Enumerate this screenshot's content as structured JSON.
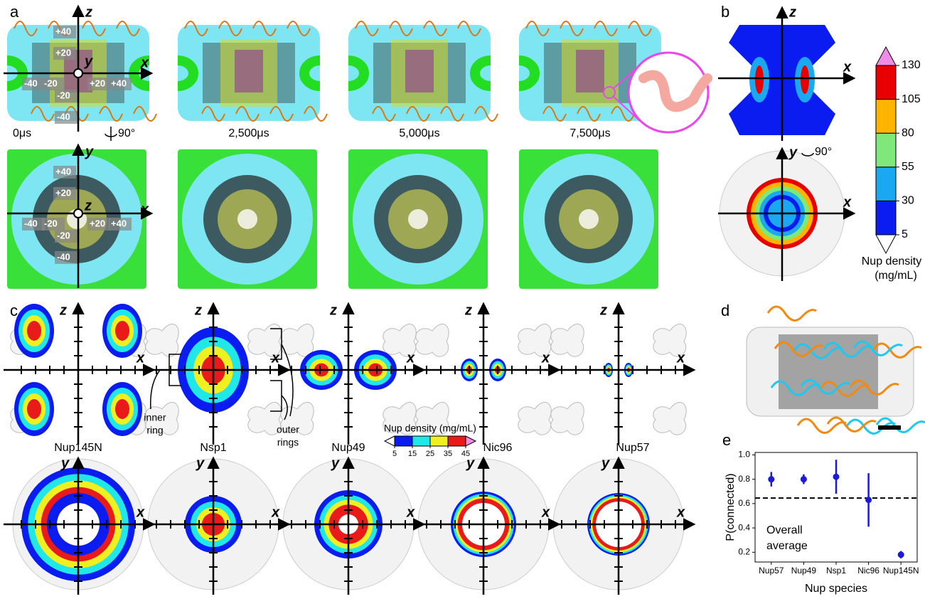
{
  "panel_labels": [
    "a",
    "b",
    "c",
    "d",
    "e"
  ],
  "panel_a": {
    "top_axes": [
      "z",
      "y",
      "x"
    ],
    "bottom_axes": [
      "y",
      "z",
      "x"
    ],
    "ticks": [
      "+40",
      "+20",
      "-40",
      "-20",
      "+20",
      "+40",
      "-20",
      "-40"
    ],
    "times": [
      "0μs",
      "2,500μs",
      "5,000μs",
      "7,500μs"
    ],
    "rotation": "90°"
  },
  "panel_b": {
    "top_axes": [
      "z",
      "x"
    ],
    "bottom_axes": [
      "y",
      "x"
    ],
    "rotation": "90°",
    "colorbar": {
      "ticks": [
        5,
        30,
        55,
        80,
        105,
        130
      ],
      "colors": [
        "#0a1cf0",
        "#1aa8f0",
        "#7ee87a",
        "#ffb400",
        "#e80000"
      ],
      "under": "#ffffff",
      "over": "#f08ce8",
      "label": [
        "Nup density",
        "(mg/mL)"
      ]
    }
  },
  "panel_c": {
    "top_axes": [
      "z",
      "x"
    ],
    "bottom_axes": [
      "y",
      "x"
    ],
    "names": [
      "Nup145N",
      "Nsp1",
      "Nup49",
      "Nic96",
      "Nup57"
    ],
    "inner_ring": [
      "inner",
      "ring"
    ],
    "outer_rings": [
      "outer",
      "rings"
    ],
    "colorbar": {
      "title": "Nup density (mg/mL)",
      "ticks": [
        5,
        15,
        25,
        35,
        45
      ],
      "colors": [
        "#0a1cf0",
        "#20e8e8",
        "#f0f020",
        "#e81a1a"
      ],
      "under": "#ffffff",
      "over": "#f08ce8"
    }
  },
  "chart_data": {
    "type": "scatter",
    "categories": [
      "Nup57",
      "Nup49",
      "Nsp1",
      "Nic96",
      "Nup145N"
    ],
    "values": [
      0.8,
      0.8,
      0.82,
      0.63,
      0.18
    ],
    "errors": [
      0.06,
      0.04,
      0.14,
      0.22,
      0.03
    ],
    "color": "#1a1ad8",
    "ylim": [
      0.12,
      1.02
    ],
    "yticks": [
      0.2,
      0.4,
      0.6,
      0.8,
      {
        "value": 1,
        "label": "1.0"
      }
    ],
    "reference_line": 0.645,
    "annotation": [
      "Overall",
      "average"
    ],
    "xlabel": "Nup species",
    "ylabel": "P(connected)"
  }
}
